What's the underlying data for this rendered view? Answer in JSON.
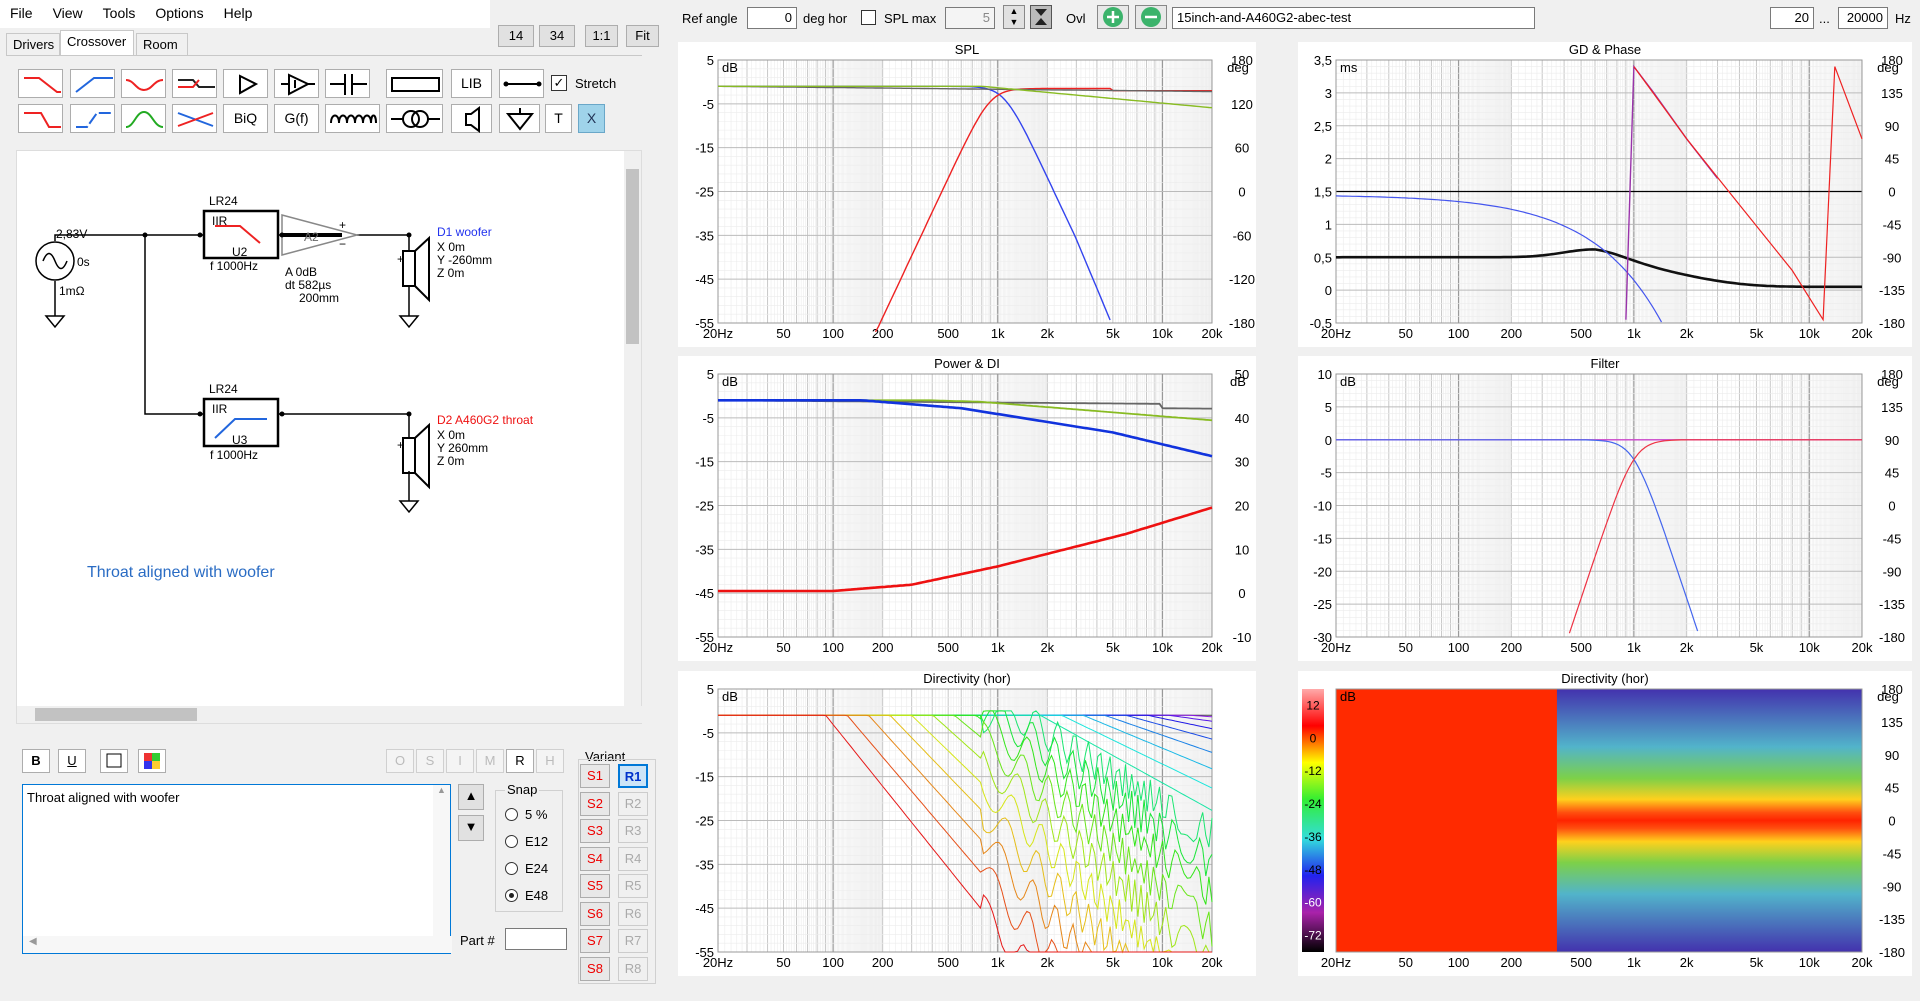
{
  "menu": [
    "File",
    "View",
    "Tools",
    "Options",
    "Help"
  ],
  "tabs": [
    "Drivers",
    "Crossover",
    "Room"
  ],
  "zoom": {
    "z1": "14",
    "z2": "34",
    "one": "1:1",
    "fit": "Fit"
  },
  "tools": {
    "lib": "LIB",
    "biq": "BiQ",
    "gf": "G(f)",
    "t": "T",
    "x": "X",
    "stretch": "Stretch"
  },
  "schematic": {
    "source": {
      "v": "2,83V",
      "t": "0s",
      "r": "1mΩ"
    },
    "u2": {
      "name": "LR24",
      "type": "IIR",
      "id": "U2",
      "f": "f   1000Hz"
    },
    "amp": {
      "a": "A   0dB",
      "dt": "dt 582µs",
      "d": "200mm"
    },
    "u3": {
      "name": "LR24",
      "type": "IIR",
      "id": "U3",
      "f": "f   1000Hz"
    },
    "d1": {
      "name": "D1 woofer",
      "x": "X 0m",
      "y": "Y -260mm",
      "z": "Z 0m"
    },
    "d2": {
      "name": "D2 A460G2 throat",
      "x": "X 0m",
      "y": "Y 260mm",
      "z": "Z 0m"
    },
    "note": "Throat aligned with woofer"
  },
  "fmt": {
    "b": "B",
    "u": "U"
  },
  "side_btns": [
    "O",
    "S",
    "I",
    "M",
    "R",
    "H"
  ],
  "notes_text": "Throat aligned with woofer",
  "snap": {
    "title": "Snap",
    "options": [
      "5 %",
      "E12",
      "E24",
      "E48"
    ],
    "selected": "E48"
  },
  "part_label": "Part #",
  "variant": {
    "title": "Variant",
    "s": [
      "S1",
      "S2",
      "S3",
      "S4",
      "S5",
      "S6",
      "S7",
      "S8"
    ],
    "r": [
      "R1",
      "R2",
      "R3",
      "R4",
      "R5",
      "R6",
      "R7",
      "R8"
    ]
  },
  "toolbar": {
    "ref_angle_label": "Ref angle",
    "ref_angle": "0",
    "deg_hor": "deg hor",
    "spl_max": "SPL max",
    "spl_max_val": "5",
    "ovl": "Ovl",
    "project": "15inch-and-A460G2-abec-test",
    "f_lo": "20",
    "dots": "...",
    "f_hi": "20000",
    "hz": "Hz"
  },
  "freq_ticks": [
    "20Hz",
    "50",
    "100",
    "200",
    "500",
    "1k",
    "2k",
    "5k",
    "10k",
    "20k"
  ],
  "plots": {
    "spl": {
      "title": "SPL",
      "lunit": "dB",
      "runit": "deg",
      "lt": [
        "5",
        "-5",
        "-15",
        "-25",
        "-35",
        "-45",
        "-55"
      ],
      "rt": [
        "180",
        "120",
        "60",
        "0",
        "-60",
        "-120",
        "-180"
      ]
    },
    "gd": {
      "title": "GD & Phase",
      "lunit": "ms",
      "runit": "deg",
      "lt": [
        "3,5",
        "3",
        "2,5",
        "2",
        "1,5",
        "1",
        "0,5",
        "0",
        "-0,5"
      ],
      "rt": [
        "180",
        "135",
        "90",
        "45",
        "0",
        "-45",
        "-90",
        "-135",
        "-180"
      ]
    },
    "pdi": {
      "title": "Power & DI",
      "lunit": "dB",
      "runit": "dB",
      "lt": [
        "5",
        "-5",
        "-15",
        "-25",
        "-35",
        "-45",
        "-55"
      ],
      "rt": [
        "50",
        "40",
        "30",
        "20",
        "10",
        "0",
        "-10"
      ]
    },
    "filter": {
      "title": "Filter",
      "lunit": "dB",
      "runit": "deg",
      "lt": [
        "10",
        "5",
        "0",
        "-5",
        "-10",
        "-15",
        "-20",
        "-25",
        "-30"
      ],
      "rt": [
        "180",
        "135",
        "90",
        "45",
        "0",
        "-45",
        "-90",
        "-135",
        "-180"
      ]
    },
    "dir": {
      "title": "Directivity (hor)",
      "lunit": "dB",
      "lt": [
        "5",
        "-5",
        "-15",
        "-25",
        "-35",
        "-45",
        "-55"
      ]
    },
    "map": {
      "title": "Directivity (hor)",
      "lunit": "dB",
      "runit": "deg",
      "scale": [
        "12",
        "0",
        "-12",
        "-24",
        "-36",
        "-48",
        "-60",
        "-72"
      ],
      "rt": [
        "180",
        "135",
        "90",
        "45",
        "0",
        "-45",
        "-90",
        "-135",
        "-180"
      ]
    }
  },
  "colors": {
    "woofer": "#3344ee",
    "throat": "#ee2222",
    "sum": "#666666",
    "green": "#88bb22",
    "accent": "#0078d7"
  }
}
